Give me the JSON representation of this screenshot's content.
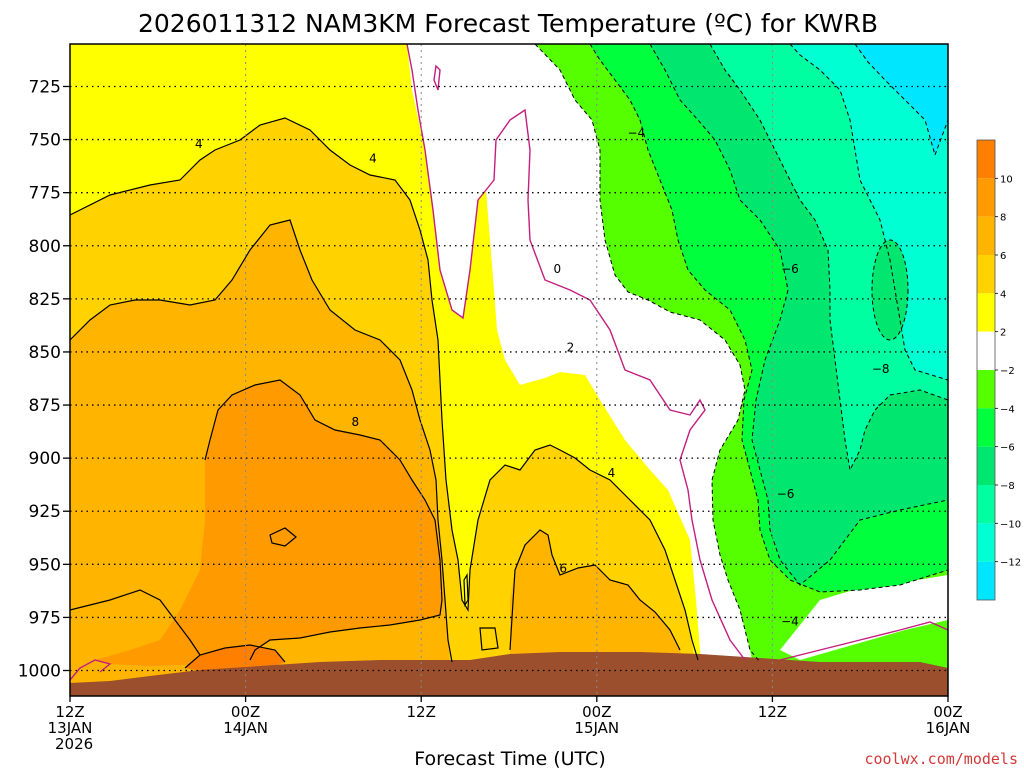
{
  "title": "2026011312 NAM3KM Forecast Temperature (ºC) for KWRB",
  "credit": "coolwx.com/models",
  "chart_data": {
    "type": "heatmap",
    "title": "2026011312 NAM3KM Forecast Temperature (ºC) for KWRB",
    "xlabel": "Forecast Time (UTC)",
    "ylabel": "",
    "x_ticks": [
      {
        "hours": 0,
        "line1": "12Z",
        "line2": "13JAN",
        "line3": "2026"
      },
      {
        "hours": 12,
        "line1": "00Z",
        "line2": "14JAN",
        "line3": ""
      },
      {
        "hours": 24,
        "line1": "12Z",
        "line2": "",
        "line3": ""
      },
      {
        "hours": 36,
        "line1": "00Z",
        "line2": "15JAN",
        "line3": ""
      },
      {
        "hours": 48,
        "line1": "12Z",
        "line2": "",
        "line3": ""
      },
      {
        "hours": 60,
        "line1": "00Z",
        "line2": "16JAN",
        "line3": ""
      }
    ],
    "xlim": [
      "12Z 13JAN 2026",
      "00Z 16JAN"
    ],
    "y_ticks": [
      725,
      750,
      775,
      800,
      825,
      850,
      875,
      900,
      925,
      950,
      975,
      1000
    ],
    "ylim": [
      1012,
      705
    ],
    "grid": true,
    "legend": "colorbar-right",
    "colorbar": {
      "labels": [
        "10",
        "8",
        "6",
        "4",
        "2",
        "−2",
        "−4",
        "−6",
        "−8",
        "−10",
        "−12"
      ],
      "bands": [
        {
          "range": "> 10",
          "color": "#ff7f00"
        },
        {
          "range": "8 to 10",
          "color": "#ff9a00"
        },
        {
          "range": "6 to 8",
          "color": "#ffb400"
        },
        {
          "range": "4 to 6",
          "color": "#ffd200"
        },
        {
          "range": "2 to 4",
          "color": "#ffff00"
        },
        {
          "range": "-2 to 2",
          "color": "#ffffff"
        },
        {
          "range": "-4 to -2",
          "color": "#55ff00"
        },
        {
          "range": "-6 to -4",
          "color": "#00ff3c"
        },
        {
          "range": "-8 to -6",
          "color": "#00e66e"
        },
        {
          "range": "-10 to -8",
          "color": "#00ffa0"
        },
        {
          "range": "-12 to -10",
          "color": "#00ffd2"
        },
        {
          "range": "< -12",
          "color": "#00e6ff"
        }
      ]
    },
    "contour_labels": [
      {
        "text": "4",
        "hours": 8.8,
        "hPa": 752
      },
      {
        "text": "4",
        "hours": 20.7,
        "hPa": 759
      },
      {
        "text": "8",
        "hours": 19.5,
        "hPa": 883
      },
      {
        "text": "0",
        "hours": 33.3,
        "hPa": 811
      },
      {
        "text": "2",
        "hours": 34.2,
        "hPa": 848
      },
      {
        "text": "4",
        "hours": 37.0,
        "hPa": 907
      },
      {
        "text": "6",
        "hours": 33.7,
        "hPa": 952
      },
      {
        "text": "−4",
        "hours": 38.7,
        "hPa": 747
      },
      {
        "text": "−6",
        "hours": 49.2,
        "hPa": 811
      },
      {
        "text": "−8",
        "hours": 55.4,
        "hPa": 858
      },
      {
        "text": "−6",
        "hours": 48.9,
        "hPa": 917
      },
      {
        "text": "−4",
        "hours": 49.2,
        "hPa": 977
      }
    ],
    "terrain_color": "#9b4f2d"
  }
}
